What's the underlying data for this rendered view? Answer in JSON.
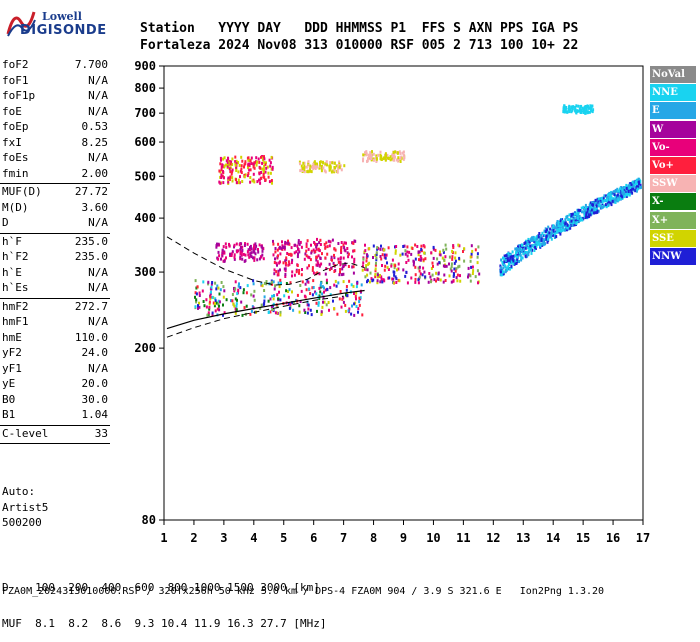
{
  "logo": {
    "line1": "Lowell",
    "line2": "DIGISONDE"
  },
  "header": {
    "labels": [
      "Station",
      "YYYY",
      "DAY",
      "DDD",
      "HHMMSS",
      "P1",
      "FFS",
      "S",
      "AXN",
      "PPS",
      "IGA",
      "PS"
    ],
    "values": [
      "Fortaleza",
      "2024",
      "Nov08",
      "313",
      "010000",
      "RSF",
      "005",
      "2",
      "713",
      "100",
      "10+",
      "22"
    ]
  },
  "params": {
    "group1": [
      {
        "name": "foF2",
        "value": "7.700"
      },
      {
        "name": "foF1",
        "value": "N/A"
      },
      {
        "name": "foF1p",
        "value": "N/A"
      },
      {
        "name": "foE",
        "value": "N/A"
      },
      {
        "name": "foEp",
        "value": "0.53"
      },
      {
        "name": "fxI",
        "value": "8.25"
      },
      {
        "name": "foEs",
        "value": "N/A"
      },
      {
        "name": "fmin",
        "value": "2.00"
      }
    ],
    "group2": [
      {
        "name": "MUF(D)",
        "value": "27.72"
      },
      {
        "name": "M(D)",
        "value": "3.60"
      },
      {
        "name": "D",
        "value": "N/A"
      }
    ],
    "group3": [
      {
        "name": "h`F",
        "value": "235.0"
      },
      {
        "name": "h`F2",
        "value": "235.0"
      },
      {
        "name": "h`E",
        "value": "N/A"
      },
      {
        "name": "h`Es",
        "value": "N/A"
      }
    ],
    "group4": [
      {
        "name": "hmF2",
        "value": "272.7"
      },
      {
        "name": "hmF1",
        "value": "N/A"
      },
      {
        "name": "hmE",
        "value": "110.0"
      },
      {
        "name": "yF2",
        "value": "24.0"
      },
      {
        "name": "yF1",
        "value": "N/A"
      },
      {
        "name": "yE",
        "value": "20.0"
      },
      {
        "name": "B0",
        "value": "30.0"
      },
      {
        "name": "B1",
        "value": "1.04"
      }
    ],
    "group5": [
      {
        "name": "C-level",
        "value": "33"
      }
    ]
  },
  "auto": {
    "line1": "Auto:",
    "line2": "Artist5",
    "line3": "500200"
  },
  "legend": [
    {
      "label": "NoVal",
      "color": "#8a8a8a"
    },
    {
      "label": "NNE",
      "color": "#19d3f0"
    },
    {
      "label": "E",
      "color": "#26a7e6"
    },
    {
      "label": "W",
      "color": "#a5039c"
    },
    {
      "label": "Vo-",
      "color": "#e8007a"
    },
    {
      "label": "Vo+",
      "color": "#ff1f3d"
    },
    {
      "label": "SSW",
      "color": "#f7b3b3"
    },
    {
      "label": "X-",
      "color": "#0a7d10"
    },
    {
      "label": "X+",
      "color": "#7fb35a"
    },
    {
      "label": "SSE",
      "color": "#d1d400"
    },
    {
      "label": "NNW",
      "color": "#1f1fd6"
    }
  ],
  "bottom": {
    "d_row": "D    100  200  400  600  800 1000 1500 3000 [km]",
    "muf_row": "MUF  8.1  8.2  8.6  9.3 10.4 11.9 16.3 27.7 [MHz]",
    "footer": "FZA0M_2024313010000.RSF / 320fx256h 50 kHz 5.0 km / DPS-4 FZA0M 904 / 3.9 S 321.6 E   Ion2Png 1.3.20"
  },
  "chart_data": {
    "type": "scatter",
    "x_axis": {
      "range": [
        1,
        17
      ],
      "ticks": [
        1,
        2,
        3,
        4,
        5,
        6,
        7,
        8,
        9,
        10,
        11,
        12,
        13,
        14,
        15,
        16,
        17
      ]
    },
    "y_axis": {
      "range": [
        80,
        900
      ],
      "scale": "log",
      "ticks": [
        80,
        200,
        300,
        400,
        500,
        600,
        700,
        800,
        900
      ]
    },
    "grid": false,
    "legend_position": "right",
    "curves": {
      "solid_profile": [
        [
          1.1,
          222
        ],
        [
          2,
          232
        ],
        [
          3,
          240
        ],
        [
          4,
          247
        ],
        [
          5,
          254
        ],
        [
          6,
          261
        ],
        [
          7,
          268
        ],
        [
          7.7,
          272
        ]
      ],
      "dashed_profile": [
        [
          1.1,
          362
        ],
        [
          2,
          332
        ],
        [
          3,
          305
        ],
        [
          4,
          287
        ],
        [
          4.7,
          280
        ],
        [
          5.2,
          281
        ],
        [
          5.8,
          289
        ],
        [
          6.3,
          302
        ],
        [
          6.8,
          312
        ],
        [
          7.2,
          315
        ],
        [
          7.7,
          307
        ]
      ],
      "dashed_lower": [
        [
          1.1,
          212
        ],
        [
          2,
          223
        ],
        [
          3,
          234
        ],
        [
          4,
          242
        ],
        [
          5,
          250
        ],
        [
          6,
          258
        ],
        [
          7,
          264
        ]
      ]
    },
    "clusters": [
      {
        "name": "F-trace",
        "x": [
          2.0,
          7.6
        ],
        "y": [
          240,
          290
        ],
        "colors": [
          "#ff1f3d",
          "#e8007a",
          "#a5039c",
          "#d1d400",
          "#0a7d10",
          "#7fb35a",
          "#26a7e6",
          "#1f1fd6",
          "#19d3f0"
        ]
      },
      {
        "name": "F-multi",
        "x": [
          7.6,
          11.5
        ],
        "y": [
          285,
          350
        ],
        "colors": [
          "#ff1f3d",
          "#e8007a",
          "#a5039c",
          "#7fb35a",
          "#d1d400",
          "#1f1fd6"
        ]
      },
      {
        "name": "W-blob",
        "x": [
          2.7,
          4.3
        ],
        "y": [
          320,
          352
        ],
        "colors": [
          "#a5039c",
          "#e8007a"
        ]
      },
      {
        "name": "W-tall",
        "x": [
          4.6,
          7.4
        ],
        "y": [
          295,
          360
        ],
        "colors": [
          "#a5039c",
          "#e8007a",
          "#ff1f3d"
        ]
      },
      {
        "name": "SSE-second-hop",
        "x": [
          2.8,
          4.6
        ],
        "y": [
          485,
          560
        ],
        "colors": [
          "#d1d400",
          "#ff1f3d",
          "#e8007a"
        ]
      },
      {
        "name": "SSE-mid",
        "x": [
          7.6,
          9.0
        ],
        "y": [
          545,
          575
        ],
        "colors": [
          "#d1d400",
          "#f7b3b3"
        ]
      },
      {
        "name": "SSE-scatter",
        "x": [
          5.5,
          7.0
        ],
        "y": [
          515,
          545
        ],
        "colors": [
          "#d1d400",
          "#f7b3b3"
        ]
      },
      {
        "name": "NNE-branch",
        "x": [
          12.2,
          16.9
        ],
        "y": [
          310,
          485
        ],
        "colors": [
          "#19d3f0",
          "#26a7e6",
          "#1f1fd6"
        ]
      },
      {
        "name": "NNE-high",
        "x": [
          14.3,
          15.3
        ],
        "y": [
          705,
          735
        ],
        "colors": [
          "#19d3f0"
        ]
      }
    ]
  }
}
